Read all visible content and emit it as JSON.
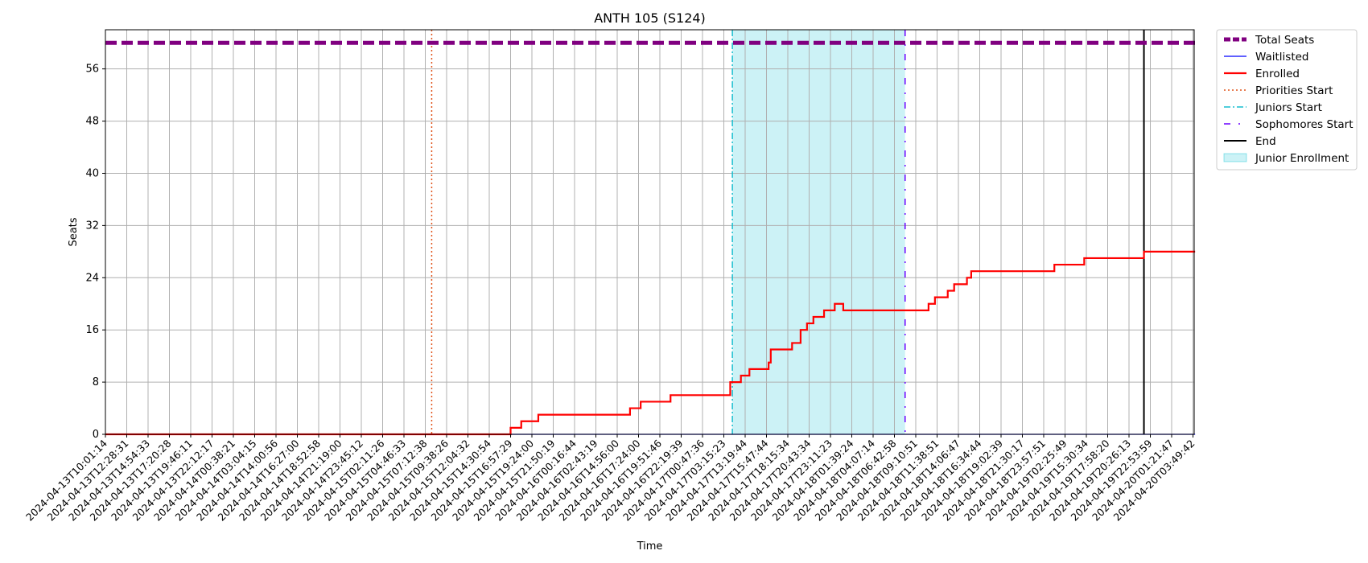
{
  "chart_data": {
    "type": "line",
    "title": "ANTH 105 (S124)",
    "xlabel": "Time",
    "ylabel": "Seats",
    "ylim": [
      0,
      62
    ],
    "yticks": [
      0,
      8,
      16,
      24,
      32,
      40,
      48,
      56
    ],
    "x_tick_labels": [
      "2024-04-13T10:01:14",
      "2024-04-13T12:28:31",
      "2024-04-13T14:54:33",
      "2024-04-13T17:20:28",
      "2024-04-13T19:46:11",
      "2024-04-13T22:12:17",
      "2024-04-14T00:38:21",
      "2024-04-14T03:04:15",
      "2024-04-14T14:00:56",
      "2024-04-14T16:27:00",
      "2024-04-14T18:52:58",
      "2024-04-14T21:19:00",
      "2024-04-14T23:45:12",
      "2024-04-15T02:11:26",
      "2024-04-15T04:46:33",
      "2024-04-15T07:12:38",
      "2024-04-15T09:38:26",
      "2024-04-15T12:04:32",
      "2024-04-15T14:30:54",
      "2024-04-15T16:57:29",
      "2024-04-15T19:24:00",
      "2024-04-15T21:50:19",
      "2024-04-16T00:16:44",
      "2024-04-16T02:43:19",
      "2024-04-16T14:56:00",
      "2024-04-16T17:24:00",
      "2024-04-16T19:51:46",
      "2024-04-16T22:19:39",
      "2024-04-17T00:47:36",
      "2024-04-17T03:15:23",
      "2024-04-17T13:19:44",
      "2024-04-17T15:47:44",
      "2024-04-17T18:15:34",
      "2024-04-17T20:43:34",
      "2024-04-17T23:11:23",
      "2024-04-18T01:39:24",
      "2024-04-18T04:07:14",
      "2024-04-18T06:42:58",
      "2024-04-18T09:10:51",
      "2024-04-18T11:38:51",
      "2024-04-18T14:06:47",
      "2024-04-18T16:34:44",
      "2024-04-18T19:02:39",
      "2024-04-18T21:30:17",
      "2024-04-18T23:57:51",
      "2024-04-19T02:25:49",
      "2024-04-19T15:30:34",
      "2024-04-19T17:58:20",
      "2024-04-19T20:26:13",
      "2024-04-19T22:53:59",
      "2024-04-20T01:21:47",
      "2024-04-20T03:49:42"
    ],
    "series": [
      {
        "name": "Total Seats",
        "color": "#800080",
        "style": "dashed",
        "points": [
          [
            0,
            60
          ],
          [
            51.1,
            60
          ]
        ]
      },
      {
        "name": "Waitlisted",
        "color": "#0000ff",
        "style": "solid",
        "points": [
          [
            0,
            0
          ],
          [
            51.1,
            0
          ]
        ]
      },
      {
        "name": "Enrolled",
        "color": "#ff0000",
        "style": "step",
        "points": [
          [
            0,
            0
          ],
          [
            19.0,
            0
          ],
          [
            19.0,
            1
          ],
          [
            19.5,
            1
          ],
          [
            19.5,
            2
          ],
          [
            20.3,
            2
          ],
          [
            20.3,
            3
          ],
          [
            24.6,
            3
          ],
          [
            24.6,
            4
          ],
          [
            25.1,
            4
          ],
          [
            25.1,
            5
          ],
          [
            26.5,
            5
          ],
          [
            26.5,
            6
          ],
          [
            29.3,
            6
          ],
          [
            29.3,
            8
          ],
          [
            29.8,
            8
          ],
          [
            29.8,
            9
          ],
          [
            30.2,
            9
          ],
          [
            30.2,
            10
          ],
          [
            31.1,
            10
          ],
          [
            31.1,
            11
          ],
          [
            31.2,
            11
          ],
          [
            31.2,
            13
          ],
          [
            32.2,
            13
          ],
          [
            32.2,
            14
          ],
          [
            32.6,
            14
          ],
          [
            32.6,
            16
          ],
          [
            32.9,
            16
          ],
          [
            32.9,
            17
          ],
          [
            33.2,
            17
          ],
          [
            33.2,
            18
          ],
          [
            33.7,
            18
          ],
          [
            33.7,
            19
          ],
          [
            34.2,
            19
          ],
          [
            34.2,
            20
          ],
          [
            34.6,
            20
          ],
          [
            34.6,
            19
          ],
          [
            38.6,
            19
          ],
          [
            38.6,
            20
          ],
          [
            38.9,
            20
          ],
          [
            38.9,
            21
          ],
          [
            39.5,
            21
          ],
          [
            39.5,
            22
          ],
          [
            39.8,
            22
          ],
          [
            39.8,
            23
          ],
          [
            40.4,
            23
          ],
          [
            40.4,
            24
          ],
          [
            40.6,
            24
          ],
          [
            40.6,
            25
          ],
          [
            44.5,
            25
          ],
          [
            44.5,
            26
          ],
          [
            45.9,
            26
          ],
          [
            45.9,
            27
          ],
          [
            48.7,
            27
          ],
          [
            48.7,
            28
          ],
          [
            51.1,
            28
          ]
        ]
      }
    ],
    "markers": [
      {
        "name": "Priorities Start",
        "x": 15.3,
        "color": "#e0541a",
        "style": "dotted"
      },
      {
        "name": "Juniors Start",
        "x": 29.4,
        "color": "#17becf",
        "style": "dashdot"
      },
      {
        "name": "Sophomores Start",
        "x": 37.5,
        "color": "#6a00ff",
        "style": "loosely-dashdot"
      },
      {
        "name": "End",
        "x": 48.7,
        "color": "#000000",
        "style": "solid"
      }
    ],
    "shaded_regions": [
      {
        "name": "Junior Enrollment",
        "x_start": 29.4,
        "x_end": 37.5,
        "color": "#00c0d0",
        "alpha": 0.2
      }
    ],
    "legend": {
      "placement": "outside-top-right",
      "entries": [
        "Total Seats",
        "Waitlisted",
        "Enrolled",
        "Priorities Start",
        "Juniors Start",
        "Sophomores Start",
        "End",
        "Junior Enrollment"
      ]
    },
    "grid": true
  }
}
